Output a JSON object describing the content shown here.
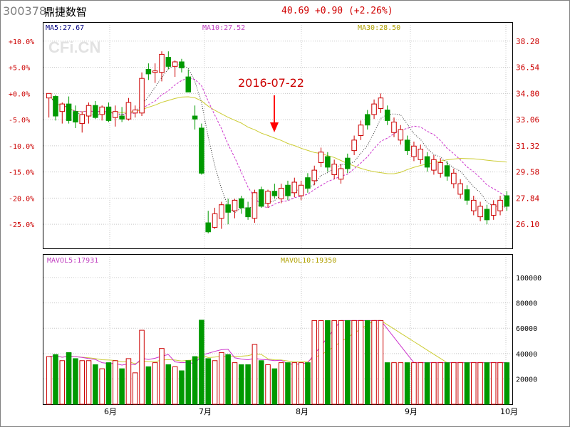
{
  "header": {
    "code": "300378",
    "name": "鼎捷数智",
    "price": "40.69",
    "change": "+0.90",
    "change_pct": "(+2.26%)"
  },
  "watermark": "CFi.CN",
  "colors": {
    "up": "#cc0000",
    "down": "#009900",
    "ma5": "#333333",
    "ma10": "#cc33cc",
    "ma30": "#cccc33",
    "grid": "#c8c8c8",
    "axis_right": "#cc0000",
    "arrow": "#ff0000"
  },
  "chart_data": [
    {
      "type": "candlestick",
      "title": "300378 鼎捷数智",
      "ma_labels": {
        "ma5": "MA5:27.67",
        "ma10": "MA10:27.52",
        "ma30": "MA30:28.50"
      },
      "left_ticks": [
        "+10.0%",
        "+5.0%",
        "+0.0%",
        "-5.0%",
        "-10.0%",
        "-15.0%",
        "-20.0%",
        "-25.0%"
      ],
      "right_ticks": [
        "38.28",
        "36.54",
        "34.80",
        "33.06",
        "31.32",
        "29.58",
        "27.84",
        "26.10"
      ],
      "ylim": [
        24.5,
        39.5
      ],
      "annotation": {
        "text": "2016-07-22",
        "index": 43
      },
      "candles": [
        [
          34.5,
          34.8,
          33.2,
          34.8
        ],
        [
          34.6,
          34.7,
          33.0,
          33.3
        ],
        [
          33.6,
          34.2,
          32.8,
          34.1
        ],
        [
          34.1,
          34.6,
          32.8,
          33.0
        ],
        [
          33.6,
          34.0,
          32.5,
          32.9
        ],
        [
          32.8,
          33.6,
          32.2,
          33.4
        ],
        [
          33.3,
          34.2,
          32.8,
          34.0
        ],
        [
          34.0,
          34.3,
          33.1,
          33.2
        ],
        [
          33.4,
          34.0,
          33.0,
          33.9
        ],
        [
          33.9,
          34.2,
          32.9,
          33.0
        ],
        [
          33.2,
          34.0,
          32.6,
          33.6
        ],
        [
          33.3,
          33.9,
          32.9,
          33.1
        ],
        [
          33.1,
          34.5,
          33.0,
          34.2
        ],
        [
          33.5,
          34.0,
          33.2,
          33.7
        ],
        [
          33.5,
          36.2,
          33.3,
          35.8
        ],
        [
          36.4,
          36.8,
          35.7,
          36.1
        ],
        [
          36.2,
          36.8,
          35.5,
          36.3
        ],
        [
          36.2,
          37.6,
          35.6,
          37.4
        ],
        [
          37.2,
          37.6,
          36.4,
          36.6
        ],
        [
          36.6,
          37.0,
          35.9,
          36.9
        ],
        [
          36.9,
          37.1,
          36.2,
          36.5
        ],
        [
          35.9,
          36.4,
          35.0,
          34.9
        ],
        [
          33.3,
          34.0,
          32.4,
          33.1
        ],
        [
          32.5,
          32.8,
          29.4,
          29.5
        ],
        [
          26.2,
          27.0,
          25.5,
          25.6
        ],
        [
          25.9,
          27.2,
          25.8,
          26.8
        ],
        [
          26.5,
          27.6,
          25.8,
          27.4
        ],
        [
          27.4,
          27.8,
          26.1,
          26.9
        ],
        [
          27.0,
          27.8,
          26.5,
          27.7
        ],
        [
          27.8,
          28.0,
          26.8,
          27.2
        ],
        [
          27.2,
          27.6,
          26.4,
          26.6
        ],
        [
          26.5,
          28.4,
          26.2,
          28.2
        ],
        [
          28.4,
          28.6,
          27.2,
          27.3
        ],
        [
          27.5,
          28.4,
          27.2,
          28.3
        ],
        [
          28.3,
          28.8,
          27.8,
          28.0
        ]
      ]
    },
    {
      "type": "volume",
      "ma_labels": {
        "mavol5": "MAVOL5:17931",
        "mavol10": "MAVOL10:19350"
      },
      "y_ticks": [
        "100000",
        "80000",
        "60000",
        "40000",
        "20000"
      ],
      "ylim": [
        0,
        118000
      ],
      "x_ticks": [
        "6月",
        "7月",
        "8月",
        "9月",
        "10月"
      ]
    }
  ]
}
